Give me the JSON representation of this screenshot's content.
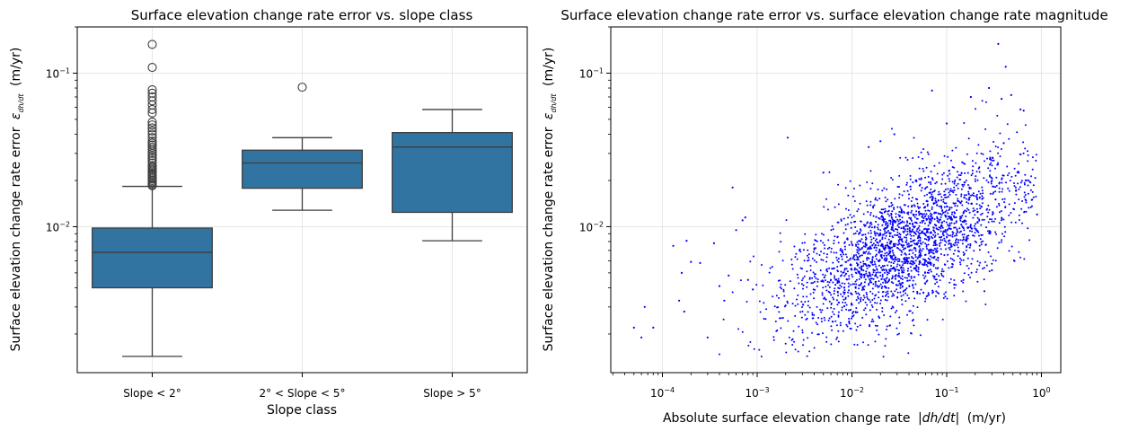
{
  "chart_data": [
    {
      "type": "box",
      "title": "Surface elevation change rate error vs. slope class",
      "xlabel": "Slope class",
      "ylabel": "Surface elevation change rate error",
      "ylabel_symbol": "ε",
      "ylabel_sub": "dh/dt",
      "ylabel_unit": "(m/yr)",
      "yscale": "log",
      "ylim": [
        0.00112,
        0.2
      ],
      "yticks": [
        {
          "value": 0.01,
          "base": "10",
          "exp": "−2"
        },
        {
          "value": 0.1,
          "base": "10",
          "exp": "−1"
        }
      ],
      "categories": [
        "Slope < 2°",
        "2° < Slope < 5°",
        "Slope > 5°"
      ],
      "boxes": [
        {
          "category": "Slope < 2°",
          "whisker_low": 0.00143,
          "q1": 0.004,
          "median": 0.0068,
          "q3": 0.0098,
          "whisker_high": 0.0183,
          "fliers": [
            0.154,
            0.109,
            0.078,
            0.074,
            0.07,
            0.066,
            0.062,
            0.058,
            0.055,
            0.048,
            0.046,
            0.044,
            0.042,
            0.04,
            0.038,
            0.036,
            0.035,
            0.034,
            0.033,
            0.032,
            0.031,
            0.03,
            0.029,
            0.028,
            0.027,
            0.026,
            0.025,
            0.0245,
            0.024,
            0.0235,
            0.023,
            0.0225,
            0.022,
            0.0215,
            0.021,
            0.0205,
            0.02,
            0.0196,
            0.0192,
            0.0188,
            0.0185
          ]
        },
        {
          "category": "2° < Slope < 5°",
          "whisker_low": 0.0128,
          "q1": 0.0178,
          "median": 0.026,
          "q3": 0.0315,
          "whisker_high": 0.038,
          "fliers": [
            0.081
          ]
        },
        {
          "category": "Slope > 5°",
          "whisker_low": 0.0081,
          "q1": 0.0124,
          "median": 0.033,
          "q3": 0.041,
          "whisker_high": 0.058,
          "fliers": []
        }
      ]
    },
    {
      "type": "scatter",
      "title": "Surface elevation change rate error vs. surface elevation change rate magnitude",
      "xlabel": "Absolute surface elevation change rate",
      "xlabel_expr": "|dh/dt|",
      "xlabel_unit": "(m/yr)",
      "ylabel": "Surface elevation change rate error",
      "ylabel_symbol": "ε",
      "ylabel_sub": "dh/dt",
      "ylabel_unit": "(m/yr)",
      "xscale": "log",
      "yscale": "log",
      "xlim": [
        2.85e-05,
        1.6
      ],
      "ylim": [
        0.00112,
        0.2
      ],
      "xticks": [
        {
          "value": 0.0001,
          "base": "10",
          "exp": "−4"
        },
        {
          "value": 0.001,
          "base": "10",
          "exp": "−3"
        },
        {
          "value": 0.01,
          "base": "10",
          "exp": "−2"
        },
        {
          "value": 0.1,
          "base": "10",
          "exp": "−1"
        },
        {
          "value": 1,
          "base": "10",
          "exp": "0"
        }
      ],
      "yticks": [
        {
          "value": 0.01,
          "base": "10",
          "exp": "−2"
        },
        {
          "value": 0.1,
          "base": "10",
          "exp": "−1"
        }
      ],
      "trend": {
        "note": "dense cloud of ~2500 points, log10(error) increases with log10(|dh/dt|) from about -2.6 near 1e-3 to about -2.0 near 1e-1",
        "n_points": 2500
      },
      "points": [
        [
          5e-05,
          0.0022
        ],
        [
          6e-05,
          0.0019
        ],
        [
          6.5e-05,
          0.003
        ],
        [
          8e-05,
          0.0022
        ],
        [
          0.00013,
          0.0075
        ],
        [
          0.00015,
          0.0033
        ],
        [
          0.00016,
          0.005
        ],
        [
          0.00017,
          0.0028
        ],
        [
          0.00018,
          0.0081
        ],
        [
          0.0002,
          0.0059
        ],
        [
          0.00025,
          0.0058
        ],
        [
          0.0003,
          0.0019
        ],
        [
          0.00035,
          0.0078
        ],
        [
          0.0004,
          0.0041
        ],
        [
          0.00045,
          0.0033
        ],
        [
          0.0005,
          0.0048
        ],
        [
          0.00055,
          0.018
        ],
        [
          0.0006,
          0.0095
        ],
        [
          0.0007,
          0.011
        ],
        [
          0.0008,
          0.0045
        ],
        [
          0.0009,
          0.0039
        ],
        [
          0.00075,
          0.0115
        ],
        [
          0.0021,
          0.038
        ],
        [
          0.005,
          0.0225
        ],
        [
          0.015,
          0.033
        ],
        [
          0.02,
          0.036
        ],
        [
          0.028,
          0.04
        ],
        [
          0.07,
          0.077
        ],
        [
          0.1,
          0.047
        ],
        [
          0.18,
          0.07
        ],
        [
          0.28,
          0.08
        ],
        [
          0.35,
          0.155
        ],
        [
          0.42,
          0.11
        ],
        [
          0.48,
          0.072
        ],
        [
          0.38,
          0.068
        ],
        [
          0.6,
          0.058
        ],
        [
          0.65,
          0.057
        ],
        [
          0.4,
          0.035
        ],
        [
          0.9,
          0.012
        ],
        [
          0.8,
          0.015
        ],
        [
          0.3,
          0.0052
        ],
        [
          0.15,
          0.0045
        ],
        [
          0.12,
          0.0042
        ],
        [
          0.25,
          0.0038
        ]
      ]
    }
  ]
}
